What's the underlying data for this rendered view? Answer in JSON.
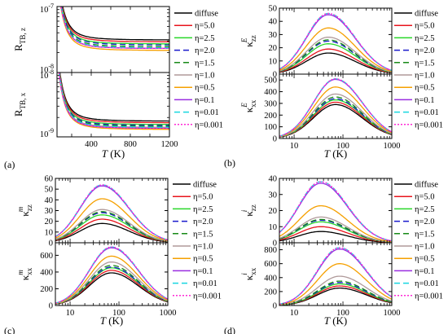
{
  "legend_entries": [
    "diffuse",
    "η=5.0",
    "η=2.5",
    "η=2.0",
    "η=1.5",
    "η=1.0",
    "η=0.5",
    "η=0.1",
    "η=0.01",
    "η=0.001"
  ],
  "series_styles": [
    {
      "color": "#000000",
      "dash": "none"
    },
    {
      "color": "#e8141c",
      "dash": "none"
    },
    {
      "color": "#2ad62a",
      "dash": "none"
    },
    {
      "color": "#1a1acc",
      "dash": "7,4"
    },
    {
      "color": "#178a17",
      "dash": "7,4"
    },
    {
      "color": "#b09a9a",
      "dash": "none"
    },
    {
      "color": "#f5a000",
      "dash": "none"
    },
    {
      "color": "#9a2ee0",
      "dash": "none"
    },
    {
      "color": "#17d6e0",
      "dash": "7,4"
    },
    {
      "color": "#ff2ad6",
      "dash": "2,2"
    }
  ],
  "chart_data": [
    {
      "panel": "(a)",
      "type": "line",
      "x_title": "T (K)",
      "xlim": [
        50,
        1200
      ],
      "x_ticks": [
        "400",
        "800",
        "1200"
      ],
      "subplots": [
        {
          "y_title": "R_TB, z",
          "y_scale": "log",
          "ylim": [
            1e-08,
            1e-07
          ],
          "y_tick_labels": [
            "10^-8",
            "10^-7"
          ],
          "series_asymptote": [
            3.1e-08,
            2.9e-08,
            2.7e-08,
            2.6e-08,
            2.45e-08,
            2.3e-08,
            2.15e-08,
            2.3e-08,
            2.35e-08,
            2.3e-08
          ]
        },
        {
          "y_title": "R_TB, x",
          "y_scale": "log",
          "ylim": [
            1e-09,
            1e-08
          ],
          "y_tick_labels": [
            "10^-9",
            "10^-8"
          ],
          "series_asymptote": [
            1.75e-09,
            1.65e-09,
            1.55e-09,
            1.5e-09,
            1.45e-09,
            1.4e-09,
            1.3e-09,
            1.35e-09,
            1.4e-09,
            1.35e-09
          ]
        }
      ]
    },
    {
      "panel": "(b)",
      "type": "line",
      "x_title": "T (K)",
      "x_scale": "log",
      "xlim": [
        5,
        1000
      ],
      "x_ticks": [
        "10",
        "100",
        "1000"
      ],
      "subplots": [
        {
          "y_title": "κ_zz^E",
          "ylim": [
            0,
            50
          ],
          "y_ticks": [
            0,
            10,
            20,
            30,
            40,
            50
          ],
          "peak_T": 50,
          "peaks": [
            16,
            19,
            23,
            25,
            26,
            28,
            35,
            45,
            46,
            46
          ]
        },
        {
          "y_title": "κ_xx^E",
          "ylim": [
            0,
            550
          ],
          "y_ticks": [
            0,
            100,
            200,
            300,
            400,
            500
          ],
          "peak_T": 70,
          "peaks": [
            290,
            310,
            330,
            340,
            355,
            380,
            440,
            505,
            510,
            510
          ]
        }
      ]
    },
    {
      "panel": "(c)",
      "type": "line",
      "x_title": "T (K)",
      "x_scale": "log",
      "xlim": [
        5,
        1000
      ],
      "x_ticks": [
        "10",
        "100",
        "1000"
      ],
      "subplots": [
        {
          "y_title": "κ_zz^m",
          "ylim": [
            0,
            60
          ],
          "y_ticks": [
            0,
            10,
            20,
            30,
            40,
            50,
            60
          ],
          "peak_T": 45,
          "peaks": [
            18,
            22,
            26,
            28,
            29,
            31,
            41,
            53,
            54,
            54
          ]
        },
        {
          "y_title": "κ_xx^m",
          "ylim": [
            0,
            750
          ],
          "y_ticks": [
            0,
            200,
            400,
            600
          ],
          "peak_T": 70,
          "peaks": [
            390,
            420,
            450,
            460,
            480,
            520,
            590,
            690,
            700,
            700
          ]
        }
      ]
    },
    {
      "panel": "(d)",
      "type": "line",
      "x_title": "T (K)",
      "x_scale": "log",
      "xlim": [
        5,
        1000
      ],
      "x_ticks": [
        "10",
        "100",
        "1000"
      ],
      "subplots": [
        {
          "y_title": "κ_zz^i",
          "ylim": [
            0,
            40
          ],
          "y_ticks": [
            0,
            10,
            20,
            30,
            40
          ],
          "peak_T": 35,
          "peaks": [
            7,
            10,
            13,
            14,
            14.5,
            16,
            23,
            37,
            38,
            38
          ]
        },
        {
          "y_title": "κ_xx^i",
          "ylim": [
            0,
            900
          ],
          "y_ticks": [
            0,
            200,
            400,
            600,
            800
          ],
          "peak_T": 85,
          "peaks": [
            250,
            280,
            310,
            330,
            350,
            420,
            600,
            810,
            830,
            830
          ]
        }
      ]
    }
  ]
}
